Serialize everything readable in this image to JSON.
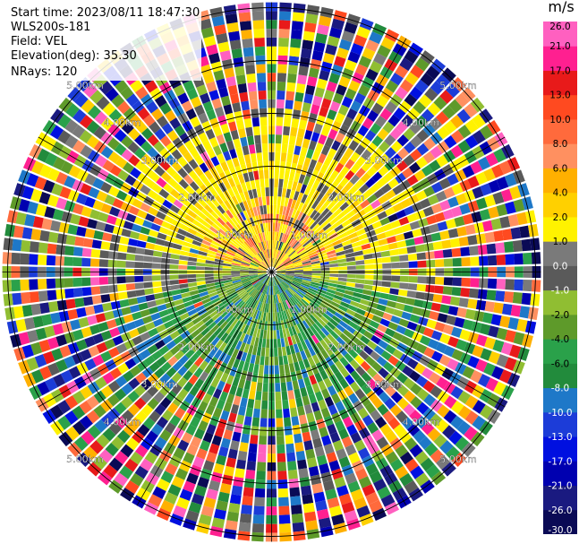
{
  "header": {
    "start_time": "Start time: 2023/08/11 18:47:30",
    "instrument": "WLS200s-181",
    "field": "Field: VEL",
    "elevation": "Elevation(deg): 35.30",
    "nrays": "NRays: 120"
  },
  "colorbar": {
    "unit": "m/s",
    "colors": [
      "#0a0a55",
      "#1a1a80",
      "#0000b0",
      "#0010e0",
      "#1c3cd8",
      "#1e78c8",
      "#228b3c",
      "#2aa14a",
      "#5e9a2a",
      "#90be32",
      "#5a5a5a",
      "#7a7a7a",
      "#fff200",
      "#ffd000",
      "#ffb000",
      "#ff9060",
      "#ff6a3c",
      "#ff4a20",
      "#e81a1a",
      "#ff2090",
      "#ff60c0"
    ],
    "ticks": [
      "26.0",
      "21.0",
      "17.0",
      "13.0",
      "10.0",
      "8.0",
      "6.0",
      "4.0",
      "2.0",
      "1.0",
      "0.0",
      "-1.0",
      "-2.0",
      "-4.0",
      "-6.0",
      "-8.0",
      "-10.0",
      "-13.0",
      "-17.0",
      "-21.0",
      "-26.0",
      "-30.0"
    ]
  },
  "chart_data": {
    "type": "heatmap",
    "projection": "polar PPI",
    "field": "VEL",
    "units": "m/s",
    "nrays": 120,
    "range_rings": [
      "1.00km",
      "2.00km",
      "3.00km",
      "4.00km",
      "5.00km"
    ],
    "vmin": -30.0,
    "vmax": 26.0,
    "pattern": {
      "near_north_half": "2.0 to 4.0 (yellow), with 6.0-8.0 patches",
      "near_south_half": "-2.0 to -6.0 (green)",
      "near_east_west_edges": "0.0 to 1.0 (gray)",
      "outer_ranges": "noise spanning -30.0 to 26.0"
    }
  }
}
